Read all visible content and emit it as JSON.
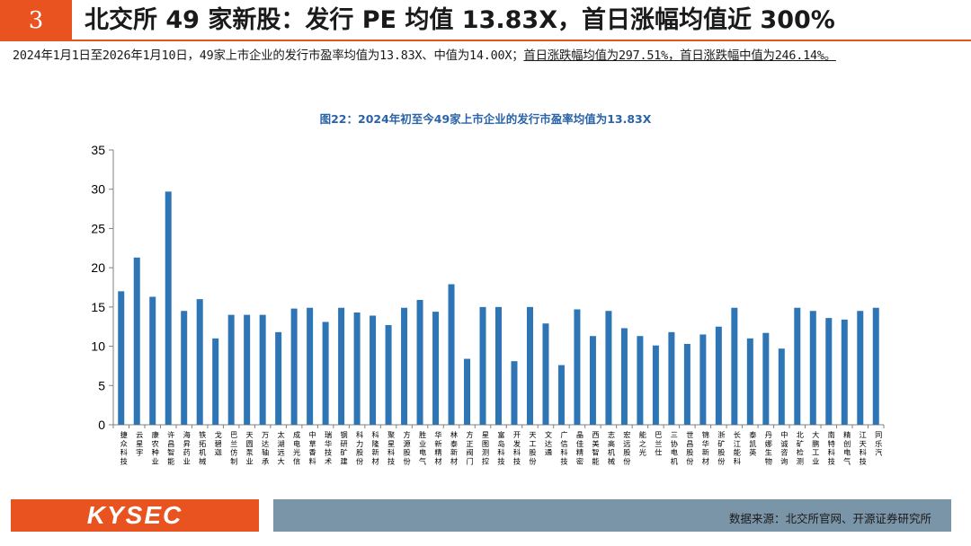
{
  "header": {
    "section_number": "3",
    "title": "北交所 49 家新股：发行 PE 均值 13.83X，首日涨幅均值近 300%"
  },
  "summary": {
    "part1": "2024年1月1日至2026年1月10日，49家上市企业的发行市盈率均值为13.83X、中值为14.00X；",
    "part2": "首日涨跌幅均值为297.51%，首日涨跌幅中值为246.14%。"
  },
  "footer": {
    "logo": "KYSEC",
    "source": "数据来源：北交所官网、开源证券研究所"
  },
  "chart_data": {
    "type": "bar",
    "title": "图22：2024年初至今49家上市企业的发行市盈率均值为13.83X",
    "xlabel": "",
    "ylabel": "",
    "ylim": [
      0,
      35
    ],
    "yticks": [
      0,
      5,
      10,
      15,
      20,
      25,
      30,
      35
    ],
    "grid": false,
    "legend": "none",
    "bar_color": "#2e75b6",
    "categories": [
      "捷众科技",
      "云星宇",
      "康农种业",
      "许昌智能",
      "海昇药业",
      "铁拓机械",
      "戈碧迦",
      "巴兰仿制",
      "天圆泵业",
      "万达轴承",
      "太湖远大",
      "成电光信",
      "中草香料",
      "瑞华技术",
      "钢研矿建",
      "科力股份",
      "科隆新材",
      "聚星科技",
      "方源股份",
      "胜业电气",
      "华新精材",
      "林泰新材",
      "方正阀门",
      "星图测控",
      "富岛科技",
      "开发科技",
      "天工股份",
      "文达通",
      "广信科技",
      "晶佳精密",
      "西美智能",
      "志高机械",
      "宏远股份",
      "能之光",
      "巴兰仕",
      "三协电机",
      "世昌股份",
      "锦华新材",
      "浙矿股份",
      "长江能科",
      "泰凯英",
      "丹娜生物",
      "中诚咨询",
      "北矿检测",
      "大鹏工业",
      "南特科技",
      "精创电气",
      "江天科技",
      "同乐汽"
    ],
    "values": [
      17.0,
      21.3,
      16.3,
      29.7,
      14.5,
      16.0,
      11.0,
      14.0,
      14.0,
      14.0,
      11.8,
      14.8,
      14.9,
      13.1,
      14.9,
      14.3,
      13.9,
      12.7,
      14.9,
      15.9,
      14.4,
      17.9,
      8.4,
      15.0,
      15.0,
      8.1,
      15.0,
      12.9,
      7.6,
      14.7,
      11.3,
      14.5,
      12.3,
      11.3,
      10.1,
      11.8,
      10.3,
      11.5,
      12.5,
      14.9,
      11.0,
      11.7,
      9.7,
      14.9,
      14.5,
      13.6,
      13.4,
      14.5,
      14.9
    ]
  }
}
